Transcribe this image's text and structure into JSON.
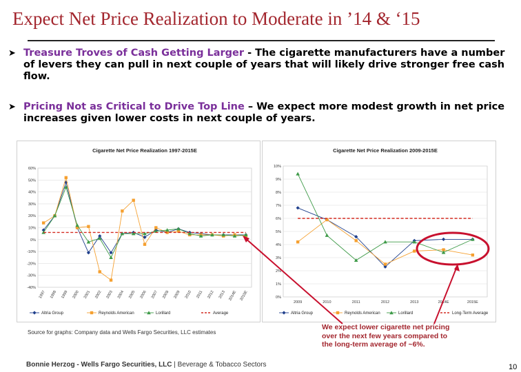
{
  "slide": {
    "title": "Expect Net Price Realization to Moderate in ’14 & ‘15",
    "bullets": [
      {
        "head": "Treasure Troves of Cash Getting Larger",
        "body": " - The cigarette manufacturers have a number of levers they can pull in next couple of years that will likely drive stronger free cash flow."
      },
      {
        "head": "Pricing Not as Critical to Drive Top Line",
        "body": " – We expect more modest growth in net price increases given lower costs in next couple of years."
      }
    ],
    "source": "Source for graphs: Company data and Wells Fargo Securities, LLC estimates",
    "footer": {
      "author": "Bonnie Herzog - Wells Fargo Securities, LLC",
      "sep": " | ",
      "sector": "Beverage & Tobacco Sectors"
    },
    "callout": "We expect lower cigarette net pricing over the next few years compared to the long-term average of ~6%.",
    "page_number": "10"
  },
  "chart_data": [
    {
      "type": "line",
      "title": "Cigarette Net Price Realization 1997-2015E",
      "categories": [
        "1997",
        "1998",
        "1999",
        "2000",
        "2001",
        "2002",
        "2003",
        "2004",
        "2005",
        "2006",
        "2007",
        "2008",
        "2009",
        "2010",
        "2011",
        "2012",
        "2013",
        "2014E",
        "2015E"
      ],
      "ylim": [
        -40,
        60
      ],
      "yticks": [
        "60%",
        "50%",
        "40%",
        "30%",
        "20%",
        "10%",
        "0%",
        "-10%",
        "-20%",
        "-30%",
        "-40%"
      ],
      "series": [
        {
          "name": "Altria Group",
          "color": "#1f3f8c",
          "style": "solid",
          "values": [
            8,
            20,
            48,
            10,
            -11,
            3,
            -11,
            5,
            6,
            2,
            8,
            6,
            9,
            6,
            5,
            4,
            4,
            4,
            4
          ]
        },
        {
          "name": "Reynolds American",
          "color": "#f5a030",
          "style": "solid",
          "values": [
            14,
            20,
            52,
            10,
            11,
            -27,
            -34,
            24,
            33,
            -4,
            10,
            6,
            7,
            4,
            4,
            4,
            3,
            4,
            3
          ]
        },
        {
          "name": "Lorillard",
          "color": "#3e9a48",
          "style": "solid",
          "values": [
            6,
            20,
            44,
            12,
            -2,
            1,
            -15,
            5,
            5,
            5,
            7,
            8,
            9,
            5,
            3,
            4,
            4,
            3,
            4
          ]
        },
        {
          "name": "Average",
          "color": "#d42a20",
          "style": "dashed",
          "values": [
            6,
            6,
            6,
            6,
            6,
            6,
            6,
            6,
            6,
            6,
            6,
            6,
            6,
            6,
            6,
            6,
            6,
            6,
            6
          ]
        }
      ]
    },
    {
      "type": "line",
      "title": "Cigarette Net Price Realization 2009-2015E",
      "categories": [
        "2009",
        "2010",
        "2011",
        "2012",
        "2013",
        "2014E",
        "2015E"
      ],
      "ylim": [
        0,
        10
      ],
      "yticks": [
        "10%",
        "9%",
        "8%",
        "7%",
        "6%",
        "5%",
        "4%",
        "3%",
        "2%",
        "1%",
        "0%"
      ],
      "series": [
        {
          "name": "Altria Group",
          "color": "#1f3f8c",
          "style": "solid",
          "values": [
            6.8,
            5.9,
            4.6,
            2.3,
            4.3,
            4.4,
            4.4
          ]
        },
        {
          "name": "Reynolds American",
          "color": "#f5a030",
          "style": "solid",
          "values": [
            4.2,
            5.9,
            4.3,
            2.5,
            3.5,
            3.6,
            3.2
          ]
        },
        {
          "name": "Lorillard",
          "color": "#3e9a48",
          "style": "solid",
          "values": [
            9.4,
            4.7,
            2.8,
            4.2,
            4.2,
            3.4,
            4.4
          ]
        },
        {
          "name": "Long-Term Average",
          "color": "#d42a20",
          "style": "dashed",
          "values": [
            6,
            6,
            6,
            6,
            6,
            6,
            6
          ]
        }
      ]
    }
  ]
}
